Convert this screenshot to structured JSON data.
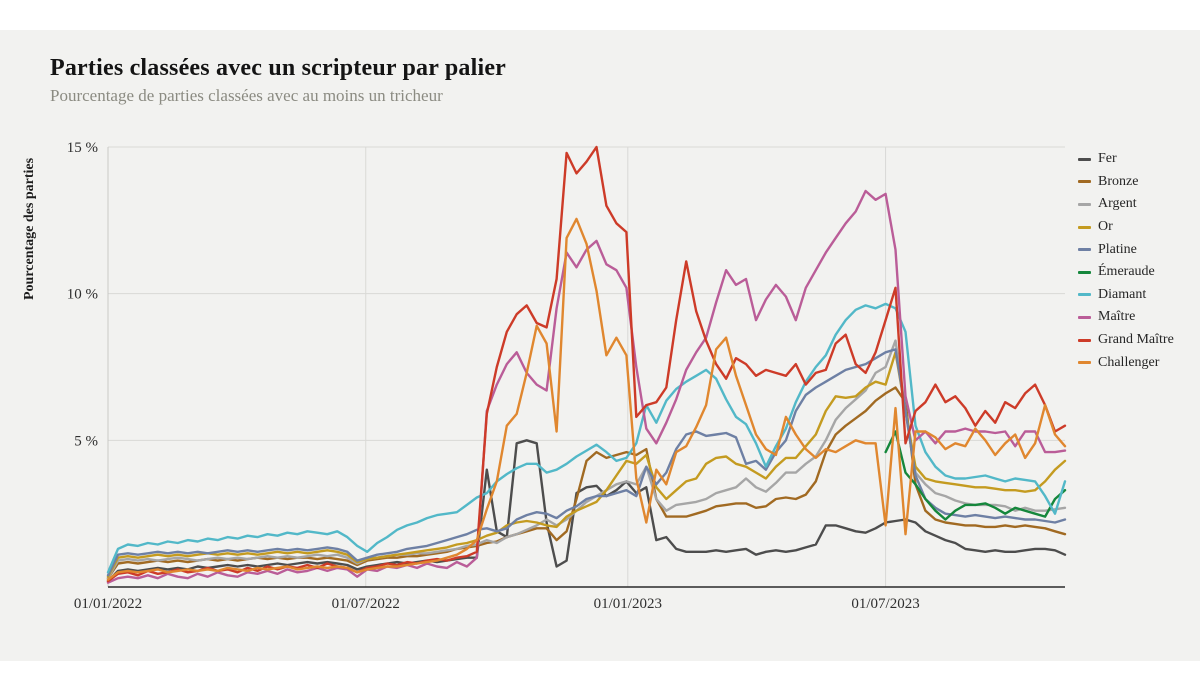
{
  "header": {
    "title": "Parties classées avec un scripteur par palier",
    "subtitle": "Pourcentage de parties classées avec au moins un tricheur"
  },
  "chart_data": {
    "type": "line",
    "title": "Parties classées avec un scripteur par palier",
    "subtitle": "Pourcentage de parties classées avec au moins un tricheur",
    "xlabel": "",
    "ylabel": "Pourcentage des parties",
    "ylim": [
      0,
      15
    ],
    "grid": true,
    "legend_position": "right",
    "x_unit": "weekly points from 01/01/2022 to 11/2023",
    "n_points": 97,
    "y_ticks": [
      {
        "value": 5,
        "label": "5 %"
      },
      {
        "value": 10,
        "label": "10 %"
      },
      {
        "value": 15,
        "label": "15 %"
      }
    ],
    "x_ticks": [
      {
        "week": 0,
        "label": "01/01/2022"
      },
      {
        "week": 25.857,
        "label": "01/07/2022"
      },
      {
        "week": 52.143,
        "label": "01/01/2023"
      },
      {
        "week": 78,
        "label": "01/07/2023"
      }
    ],
    "series": [
      {
        "name": "Fer",
        "slug": "fer",
        "color": "#4d4d4d",
        "values": [
          0.2,
          0.55,
          0.6,
          0.55,
          0.6,
          0.65,
          0.6,
          0.65,
          0.6,
          0.7,
          0.65,
          0.7,
          0.75,
          0.7,
          0.75,
          0.7,
          0.75,
          0.8,
          0.75,
          0.8,
          0.85,
          0.8,
          0.85,
          0.8,
          0.75,
          0.6,
          0.7,
          0.75,
          0.8,
          0.85,
          0.8,
          0.85,
          0.9,
          0.85,
          0.9,
          0.95,
          1.0,
          1.0,
          4.0,
          1.9,
          1.7,
          4.9,
          5.0,
          4.9,
          2.2,
          0.7,
          0.9,
          3.2,
          3.4,
          3.45,
          3.1,
          3.3,
          3.6,
          3.2,
          3.4,
          1.6,
          1.7,
          1.3,
          1.2,
          1.2,
          1.2,
          1.25,
          1.2,
          1.25,
          1.3,
          1.1,
          1.2,
          1.25,
          1.2,
          1.25,
          1.35,
          1.45,
          2.1,
          2.1,
          2.0,
          1.9,
          1.85,
          2.0,
          2.2,
          2.25,
          2.3,
          2.2,
          1.9,
          1.75,
          1.6,
          1.5,
          1.3,
          1.25,
          1.2,
          1.25,
          1.2,
          1.2,
          1.25,
          1.3,
          1.3,
          1.25,
          1.1
        ]
      },
      {
        "name": "Bronze",
        "slug": "bronze",
        "color": "#a16a22",
        "values": [
          0.3,
          0.8,
          0.85,
          0.8,
          0.85,
          0.9,
          0.85,
          0.9,
          0.85,
          0.9,
          0.95,
          0.9,
          0.95,
          0.9,
          0.95,
          1.0,
          0.95,
          1.0,
          0.95,
          1.0,
          1.0,
          0.95,
          1.0,
          0.95,
          0.9,
          0.75,
          0.9,
          0.95,
          1.0,
          1.0,
          1.05,
          1.05,
          1.1,
          1.15,
          1.2,
          1.3,
          1.35,
          1.4,
          1.5,
          1.55,
          1.7,
          1.8,
          1.9,
          2.0,
          2.0,
          1.6,
          1.9,
          3.0,
          4.3,
          4.6,
          4.4,
          4.5,
          4.6,
          4.5,
          4.7,
          3.0,
          2.4,
          2.4,
          2.4,
          2.5,
          2.6,
          2.75,
          2.8,
          2.85,
          2.85,
          2.7,
          2.75,
          3.0,
          3.05,
          3.0,
          3.15,
          3.6,
          4.6,
          5.2,
          5.5,
          5.75,
          6.0,
          6.35,
          6.6,
          6.8,
          6.3,
          3.5,
          2.6,
          2.3,
          2.2,
          2.15,
          2.1,
          2.1,
          2.05,
          2.05,
          2.1,
          2.05,
          2.1,
          2.05,
          2.0,
          1.9,
          1.8
        ]
      },
      {
        "name": "Argent",
        "slug": "argent",
        "color": "#a6a6a6",
        "values": [
          0.3,
          0.9,
          0.95,
          0.9,
          0.95,
          0.9,
          0.95,
          1.0,
          0.95,
          0.9,
          0.95,
          1.0,
          0.95,
          1.0,
          0.95,
          1.0,
          1.05,
          1.0,
          1.05,
          1.0,
          1.05,
          1.1,
          1.05,
          1.1,
          1.0,
          0.8,
          0.95,
          1.0,
          1.05,
          1.1,
          1.1,
          1.15,
          1.15,
          1.2,
          1.25,
          1.3,
          1.4,
          1.45,
          1.6,
          1.5,
          1.7,
          1.8,
          1.95,
          2.1,
          2.3,
          2.1,
          2.3,
          2.6,
          2.9,
          3.1,
          3.3,
          3.5,
          3.6,
          3.5,
          4.1,
          3.0,
          2.6,
          2.8,
          2.85,
          2.9,
          3.0,
          3.2,
          3.3,
          3.4,
          3.7,
          3.4,
          3.25,
          3.55,
          3.9,
          3.9,
          4.2,
          4.45,
          5.0,
          5.7,
          6.1,
          6.4,
          6.7,
          7.3,
          7.5,
          8.4,
          6.0,
          3.9,
          3.5,
          3.2,
          3.1,
          2.95,
          2.85,
          2.8,
          2.8,
          2.8,
          2.75,
          2.6,
          2.7,
          2.6,
          2.6,
          2.65,
          2.7
        ]
      },
      {
        "name": "Or",
        "slug": "or",
        "color": "#c49b20",
        "values": [
          0.35,
          1.0,
          1.05,
          1.0,
          1.05,
          1.1,
          1.05,
          1.1,
          1.05,
          1.1,
          1.15,
          1.1,
          1.15,
          1.1,
          1.15,
          1.1,
          1.15,
          1.2,
          1.15,
          1.2,
          1.15,
          1.2,
          1.25,
          1.2,
          1.1,
          0.85,
          0.95,
          1.0,
          1.05,
          1.1,
          1.15,
          1.2,
          1.25,
          1.3,
          1.35,
          1.45,
          1.5,
          1.6,
          1.75,
          1.85,
          2.1,
          2.2,
          2.25,
          2.2,
          2.1,
          2.05,
          2.4,
          2.6,
          2.75,
          2.9,
          3.3,
          3.8,
          4.3,
          4.2,
          4.5,
          3.4,
          3.0,
          3.3,
          3.6,
          3.7,
          4.2,
          4.4,
          4.45,
          4.2,
          4.1,
          3.9,
          3.7,
          4.1,
          4.4,
          4.4,
          4.8,
          5.2,
          6.0,
          6.5,
          6.45,
          6.5,
          6.8,
          7.0,
          6.9,
          8.0,
          6.0,
          4.1,
          3.7,
          3.6,
          3.55,
          3.5,
          3.45,
          3.4,
          3.4,
          3.35,
          3.3,
          3.3,
          3.25,
          3.3,
          3.6,
          4.0,
          4.3
        ]
      },
      {
        "name": "Platine",
        "slug": "platine",
        "color": "#6e80a4",
        "values": [
          0.4,
          1.1,
          1.15,
          1.1,
          1.15,
          1.2,
          1.15,
          1.2,
          1.15,
          1.2,
          1.15,
          1.2,
          1.25,
          1.2,
          1.25,
          1.2,
          1.25,
          1.3,
          1.25,
          1.3,
          1.25,
          1.3,
          1.35,
          1.3,
          1.2,
          0.9,
          1.0,
          1.1,
          1.15,
          1.2,
          1.3,
          1.35,
          1.4,
          1.5,
          1.6,
          1.7,
          1.8,
          1.95,
          2.0,
          1.9,
          2.0,
          2.3,
          2.45,
          2.55,
          2.5,
          2.35,
          2.6,
          2.75,
          3.0,
          3.1,
          3.1,
          3.2,
          3.3,
          3.1,
          4.1,
          3.5,
          3.9,
          4.7,
          5.2,
          5.3,
          5.15,
          5.2,
          5.25,
          5.1,
          4.2,
          4.3,
          4.0,
          4.6,
          5.0,
          6.0,
          6.55,
          6.8,
          7.0,
          7.2,
          7.4,
          7.5,
          7.6,
          7.8,
          8.0,
          8.1,
          6.0,
          3.8,
          3.0,
          2.7,
          2.5,
          2.45,
          2.4,
          2.45,
          2.4,
          2.35,
          2.4,
          2.35,
          2.3,
          2.3,
          2.25,
          2.2,
          2.3
        ]
      },
      {
        "name": "Émeraude",
        "slug": "emeraude",
        "color": "#15873c",
        "values": [
          null,
          null,
          null,
          null,
          null,
          null,
          null,
          null,
          null,
          null,
          null,
          null,
          null,
          null,
          null,
          null,
          null,
          null,
          null,
          null,
          null,
          null,
          null,
          null,
          null,
          null,
          null,
          null,
          null,
          null,
          null,
          null,
          null,
          null,
          null,
          null,
          null,
          null,
          null,
          null,
          null,
          null,
          null,
          null,
          null,
          null,
          null,
          null,
          null,
          null,
          null,
          null,
          null,
          null,
          null,
          null,
          null,
          null,
          null,
          null,
          null,
          null,
          null,
          null,
          null,
          null,
          null,
          null,
          null,
          null,
          null,
          null,
          null,
          null,
          null,
          null,
          null,
          null,
          4.6,
          5.3,
          3.9,
          3.5,
          3.0,
          2.6,
          2.3,
          2.6,
          2.8,
          2.8,
          2.85,
          2.7,
          2.5,
          2.7,
          2.6,
          2.5,
          2.4,
          3.0,
          3.3
        ]
      },
      {
        "name": "Diamant",
        "slug": "diamant",
        "color": "#52b8c8",
        "values": [
          0.5,
          1.3,
          1.45,
          1.4,
          1.5,
          1.45,
          1.55,
          1.5,
          1.6,
          1.55,
          1.65,
          1.6,
          1.7,
          1.65,
          1.75,
          1.7,
          1.8,
          1.75,
          1.85,
          1.8,
          1.9,
          1.85,
          1.8,
          1.9,
          1.7,
          1.4,
          1.2,
          1.5,
          1.7,
          1.95,
          2.1,
          2.2,
          2.35,
          2.45,
          2.5,
          2.55,
          2.8,
          3.05,
          3.2,
          3.6,
          3.85,
          4.05,
          4.2,
          4.2,
          3.9,
          4.0,
          4.2,
          4.45,
          4.65,
          4.85,
          4.6,
          4.3,
          4.4,
          4.9,
          6.2,
          5.6,
          6.35,
          6.75,
          7.0,
          7.2,
          7.4,
          7.1,
          6.4,
          5.8,
          5.55,
          4.9,
          4.1,
          4.8,
          5.4,
          6.3,
          7.0,
          7.5,
          7.9,
          8.6,
          9.1,
          9.45,
          9.6,
          9.5,
          9.65,
          9.5,
          8.7,
          5.5,
          4.6,
          4.1,
          3.8,
          3.7,
          3.7,
          3.75,
          3.8,
          3.7,
          3.6,
          3.7,
          3.65,
          3.6,
          3.1,
          2.5,
          3.6
        ]
      },
      {
        "name": "Maître",
        "slug": "maitre",
        "color": "#ba5d98",
        "values": [
          0.15,
          0.3,
          0.35,
          0.3,
          0.4,
          0.3,
          0.45,
          0.35,
          0.3,
          0.45,
          0.35,
          0.5,
          0.4,
          0.35,
          0.5,
          0.45,
          0.55,
          0.45,
          0.6,
          0.5,
          0.55,
          0.65,
          0.55,
          0.65,
          0.6,
          0.35,
          0.6,
          0.55,
          0.7,
          0.65,
          0.75,
          0.65,
          0.8,
          0.7,
          0.65,
          0.85,
          0.7,
          1.0,
          6.0,
          6.9,
          7.6,
          8.0,
          7.3,
          6.9,
          6.7,
          9.5,
          11.4,
          10.9,
          11.5,
          11.8,
          11.0,
          10.8,
          10.2,
          7.5,
          5.4,
          4.9,
          5.6,
          6.4,
          7.4,
          8.0,
          8.5,
          9.7,
          10.8,
          10.3,
          10.5,
          9.1,
          9.8,
          10.3,
          9.9,
          9.1,
          10.2,
          10.8,
          11.4,
          11.9,
          12.4,
          12.8,
          13.5,
          13.2,
          13.4,
          11.5,
          6.5,
          5.0,
          5.3,
          4.9,
          5.3,
          5.3,
          5.4,
          5.3,
          5.3,
          5.25,
          5.3,
          4.8,
          5.3,
          5.3,
          4.6,
          4.6,
          4.65
        ]
      },
      {
        "name": "Grand Maître",
        "slug": "grand-maitre",
        "color": "#cd3b28",
        "values": [
          0.2,
          0.45,
          0.5,
          0.4,
          0.55,
          0.45,
          0.5,
          0.6,
          0.5,
          0.55,
          0.65,
          0.55,
          0.6,
          0.5,
          0.65,
          0.55,
          0.7,
          0.6,
          0.7,
          0.65,
          0.75,
          0.65,
          0.8,
          0.7,
          0.65,
          0.5,
          0.65,
          0.7,
          0.8,
          0.75,
          0.85,
          0.8,
          0.9,
          0.95,
          0.9,
          1.0,
          1.05,
          1.2,
          5.9,
          7.5,
          8.7,
          9.3,
          9.6,
          9.0,
          8.85,
          10.5,
          14.8,
          14.1,
          14.5,
          15.0,
          13.0,
          12.4,
          12.1,
          5.8,
          6.2,
          6.3,
          6.8,
          9.1,
          11.1,
          9.4,
          8.4,
          7.6,
          7.1,
          7.8,
          7.6,
          7.2,
          7.4,
          7.3,
          7.2,
          7.6,
          6.9,
          7.3,
          7.4,
          8.3,
          8.6,
          7.6,
          7.3,
          8.0,
          9.1,
          10.2,
          4.9,
          6.0,
          6.3,
          6.9,
          6.3,
          6.5,
          6.1,
          5.5,
          6.0,
          5.6,
          6.3,
          6.1,
          6.6,
          6.9,
          6.2,
          5.3,
          5.5
        ]
      },
      {
        "name": "Challenger",
        "slug": "challenger",
        "color": "#e0872f",
        "values": [
          0.25,
          0.5,
          0.55,
          0.5,
          0.55,
          0.6,
          0.5,
          0.55,
          0.6,
          0.55,
          0.6,
          0.55,
          0.65,
          0.6,
          0.55,
          0.65,
          0.6,
          0.65,
          0.7,
          0.6,
          0.65,
          0.7,
          0.65,
          0.7,
          0.65,
          0.5,
          0.6,
          0.65,
          0.7,
          0.7,
          0.75,
          0.8,
          0.85,
          0.9,
          1.0,
          1.1,
          1.3,
          1.6,
          2.65,
          3.6,
          5.5,
          5.9,
          7.3,
          8.9,
          8.3,
          5.3,
          11.9,
          12.55,
          11.7,
          10.1,
          7.9,
          8.5,
          7.9,
          3.7,
          2.2,
          4.0,
          3.5,
          4.6,
          4.8,
          5.45,
          6.2,
          8.1,
          8.5,
          7.2,
          6.2,
          5.2,
          4.7,
          4.5,
          5.8,
          5.2,
          4.7,
          4.4,
          4.7,
          4.6,
          4.8,
          5.0,
          4.9,
          4.9,
          2.1,
          6.1,
          1.8,
          5.3,
          5.3,
          5.1,
          4.7,
          4.9,
          4.8,
          5.4,
          5.0,
          4.5,
          4.9,
          5.2,
          4.4,
          4.9,
          6.2,
          5.2,
          4.8
        ]
      }
    ]
  },
  "style": {
    "panel_background": "#f2f2f0",
    "page_background": "#ffffff",
    "grid_color": "#d9d9d6",
    "axis_color": "#2a2a2a",
    "tick_label_color": "#2e2e2e"
  }
}
